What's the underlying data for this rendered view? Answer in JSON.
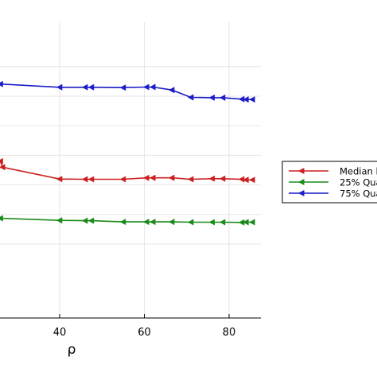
{
  "chart_data": {
    "type": "line",
    "title": "",
    "xlabel": "ρ",
    "ylabel": "",
    "xlim": [
      26,
      90
    ],
    "ylim": [
      0.0,
      1.0
    ],
    "x_ticks": [
      40,
      60,
      80
    ],
    "x_tick_labels": [
      "40",
      "60",
      "80"
    ],
    "grid": true,
    "legend_position": "right-outside",
    "series": [
      {
        "name": "Median l",
        "color": "#cc1f1f",
        "points": [
          [
            26,
            0.53
          ],
          [
            26.5,
            0.51
          ],
          [
            40,
            0.47
          ],
          [
            46,
            0.469
          ],
          [
            47.5,
            0.469
          ],
          [
            55,
            0.469
          ],
          [
            60.5,
            0.474
          ],
          [
            62,
            0.474
          ],
          [
            66.5,
            0.474
          ],
          [
            71,
            0.469
          ],
          [
            76,
            0.471
          ],
          [
            78.5,
            0.471
          ],
          [
            83,
            0.469
          ],
          [
            84,
            0.467
          ],
          [
            85.5,
            0.467
          ]
        ]
      },
      {
        "name": "25% Qua",
        "color": "#1a8a1a",
        "points": [
          [
            26,
            0.337
          ],
          [
            40,
            0.33
          ],
          [
            46,
            0.329
          ],
          [
            47.5,
            0.329
          ],
          [
            55,
            0.325
          ],
          [
            60.5,
            0.325
          ],
          [
            62,
            0.325
          ],
          [
            66.5,
            0.325
          ],
          [
            71,
            0.324
          ],
          [
            76,
            0.324
          ],
          [
            78.5,
            0.324
          ],
          [
            83,
            0.323
          ],
          [
            84,
            0.324
          ],
          [
            85.5,
            0.324
          ]
        ]
      },
      {
        "name": "75% Qua",
        "color": "#1c1cc8",
        "points": [
          [
            26,
            0.791
          ],
          [
            40,
            0.78
          ],
          [
            46,
            0.78
          ],
          [
            47.5,
            0.78
          ],
          [
            55,
            0.779
          ],
          [
            60.5,
            0.781
          ],
          [
            62,
            0.781
          ],
          [
            66.5,
            0.771
          ],
          [
            71,
            0.746
          ],
          [
            76,
            0.745
          ],
          [
            78.5,
            0.745
          ],
          [
            83,
            0.74
          ],
          [
            84,
            0.739
          ],
          [
            85.5,
            0.739
          ]
        ]
      }
    ]
  }
}
